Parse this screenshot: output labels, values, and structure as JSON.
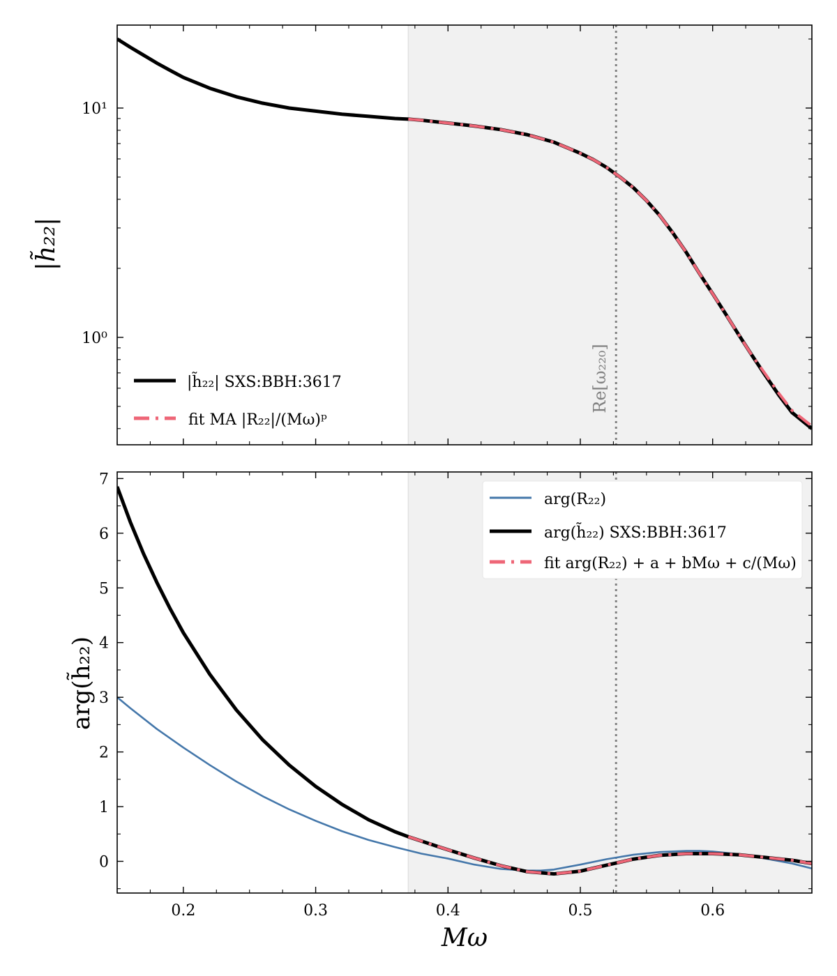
{
  "figure": {
    "colors": {
      "data": "#000000",
      "fit": "#ee6677",
      "r22": "#4477aa",
      "shade": "#f1f1f1",
      "vline": "#808080"
    }
  },
  "chart_data": [
    {
      "type": "line",
      "panel": "top",
      "xlabel": "",
      "ylabel": "|h̃₂₂|",
      "yscale": "log",
      "xlim": [
        0.15,
        0.675
      ],
      "ylim": [
        0.34,
        23
      ],
      "yticks": [
        {
          "value": 1,
          "label": "10⁰"
        },
        {
          "value": 10,
          "label": "10¹"
        }
      ],
      "shaded_region": {
        "x_start": 0.37,
        "x_end": 0.675
      },
      "vline": {
        "x": 0.527,
        "label": "Re[ω₂₂₀]"
      },
      "legend_position": "lower-left",
      "series": [
        {
          "name": "|h̃₂₂| SXS:BBH:3617",
          "style": "solid-thick",
          "color": "#000000",
          "x": [
            0.15,
            0.16,
            0.17,
            0.18,
            0.19,
            0.2,
            0.22,
            0.24,
            0.26,
            0.28,
            0.3,
            0.32,
            0.34,
            0.36,
            0.37,
            0.38,
            0.4,
            0.42,
            0.44,
            0.46,
            0.48,
            0.5,
            0.51,
            0.52,
            0.53,
            0.54,
            0.55,
            0.56,
            0.57,
            0.58,
            0.59,
            0.6,
            0.61,
            0.62,
            0.63,
            0.64,
            0.65,
            0.66,
            0.675
          ],
          "y": [
            20.0,
            18.4,
            17.0,
            15.7,
            14.6,
            13.6,
            12.2,
            11.2,
            10.5,
            10.0,
            9.7,
            9.4,
            9.2,
            9.0,
            8.95,
            8.85,
            8.6,
            8.35,
            8.05,
            7.65,
            7.1,
            6.35,
            5.95,
            5.5,
            5.0,
            4.5,
            3.95,
            3.4,
            2.85,
            2.35,
            1.9,
            1.55,
            1.26,
            1.02,
            0.83,
            0.68,
            0.56,
            0.47,
            0.4
          ]
        },
        {
          "name": "fit MA |R₂₂|/(Mω)ᵖ",
          "style": "dashed",
          "color": "#ee6677",
          "x": [
            0.37,
            0.38,
            0.4,
            0.42,
            0.44,
            0.46,
            0.48,
            0.5,
            0.51,
            0.52,
            0.53,
            0.54,
            0.55,
            0.56,
            0.57,
            0.58,
            0.59,
            0.6,
            0.61,
            0.62,
            0.63,
            0.64,
            0.65,
            0.66,
            0.675
          ],
          "y": [
            8.95,
            8.85,
            8.6,
            8.35,
            8.05,
            7.65,
            7.1,
            6.35,
            5.95,
            5.5,
            5.0,
            4.5,
            3.95,
            3.4,
            2.85,
            2.35,
            1.9,
            1.55,
            1.26,
            1.02,
            0.83,
            0.69,
            0.57,
            0.48,
            0.41
          ]
        }
      ]
    },
    {
      "type": "line",
      "panel": "bottom",
      "xlabel": "Mω",
      "ylabel": "arg(h̃₂₂)",
      "yscale": "linear",
      "xlim": [
        0.15,
        0.675
      ],
      "ylim": [
        -0.58,
        7.12
      ],
      "xticks": [
        0.2,
        0.3,
        0.4,
        0.5,
        0.6
      ],
      "yticks": [
        0,
        1,
        2,
        3,
        4,
        5,
        6,
        7
      ],
      "shaded_region": {
        "x_start": 0.37,
        "x_end": 0.675
      },
      "vline": {
        "x": 0.527
      },
      "legend_position": "upper-right",
      "series": [
        {
          "name": "arg(R₂₂)",
          "style": "solid-thin",
          "color": "#4477aa",
          "x": [
            0.15,
            0.16,
            0.18,
            0.2,
            0.22,
            0.24,
            0.26,
            0.28,
            0.3,
            0.32,
            0.34,
            0.36,
            0.38,
            0.4,
            0.42,
            0.44,
            0.46,
            0.47,
            0.48,
            0.5,
            0.52,
            0.54,
            0.56,
            0.58,
            0.59,
            0.6,
            0.62,
            0.64,
            0.66,
            0.675
          ],
          "y": [
            3.0,
            2.8,
            2.42,
            2.08,
            1.76,
            1.46,
            1.19,
            0.95,
            0.74,
            0.55,
            0.39,
            0.26,
            0.14,
            0.05,
            -0.06,
            -0.14,
            -0.17,
            -0.17,
            -0.15,
            -0.06,
            0.04,
            0.12,
            0.17,
            0.19,
            0.19,
            0.18,
            0.13,
            0.05,
            -0.04,
            -0.13
          ]
        },
        {
          "name": "arg(h̃₂₂) SXS:BBH:3617",
          "style": "solid-thick",
          "color": "#000000",
          "x": [
            0.15,
            0.16,
            0.17,
            0.18,
            0.19,
            0.2,
            0.22,
            0.24,
            0.26,
            0.28,
            0.3,
            0.32,
            0.34,
            0.36,
            0.37,
            0.38,
            0.4,
            0.42,
            0.44,
            0.46,
            0.48,
            0.5,
            0.52,
            0.54,
            0.56,
            0.58,
            0.6,
            0.62,
            0.64,
            0.66,
            0.675
          ],
          "y": [
            6.85,
            6.2,
            5.62,
            5.1,
            4.62,
            4.18,
            3.42,
            2.77,
            2.22,
            1.76,
            1.37,
            1.04,
            0.76,
            0.54,
            0.45,
            0.37,
            0.21,
            0.06,
            -0.08,
            -0.19,
            -0.23,
            -0.18,
            -0.07,
            0.04,
            0.11,
            0.14,
            0.14,
            0.12,
            0.07,
            0.02,
            -0.04
          ]
        },
        {
          "name": "fit arg(R₂₂) + a + bMω + c/(Mω)",
          "style": "dashed",
          "color": "#ee6677",
          "x": [
            0.37,
            0.38,
            0.4,
            0.42,
            0.44,
            0.46,
            0.48,
            0.5,
            0.52,
            0.54,
            0.56,
            0.58,
            0.6,
            0.62,
            0.64,
            0.66,
            0.675
          ],
          "y": [
            0.45,
            0.37,
            0.21,
            0.06,
            -0.08,
            -0.19,
            -0.23,
            -0.18,
            -0.07,
            0.04,
            0.11,
            0.14,
            0.14,
            0.12,
            0.07,
            0.02,
            -0.04
          ]
        }
      ]
    }
  ]
}
